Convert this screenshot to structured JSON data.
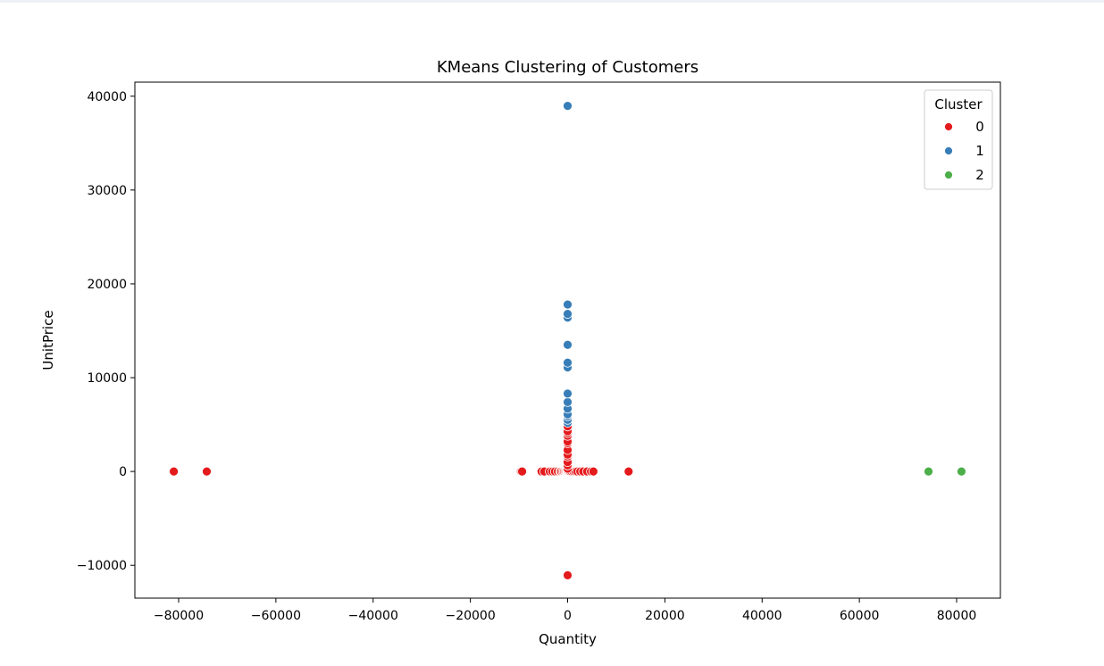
{
  "chart_data": {
    "type": "scatter",
    "title": "KMeans Clustering of Customers",
    "xlabel": "Quantity",
    "ylabel": "UnitPrice",
    "xlim": [
      -89000,
      89000
    ],
    "ylim": [
      -13500,
      41500
    ],
    "xticks": [
      -80000,
      -60000,
      -40000,
      -20000,
      0,
      20000,
      40000,
      60000,
      80000
    ],
    "yticks": [
      -10000,
      0,
      10000,
      20000,
      30000,
      40000
    ],
    "grid": false,
    "legend": {
      "title": "Cluster",
      "placement": "top-right"
    },
    "series": [
      {
        "name": "0",
        "color": "#e41a1c",
        "points": [
          [
            -80995,
            0
          ],
          [
            -74215,
            0
          ],
          [
            -9600,
            0
          ],
          [
            -9360,
            0
          ],
          [
            -5368,
            0
          ],
          [
            -4800,
            0
          ],
          [
            -3667,
            0
          ],
          [
            -3114,
            0
          ],
          [
            -2600,
            0
          ],
          [
            -2000,
            0
          ],
          [
            -1515,
            0
          ],
          [
            -1350,
            0
          ],
          [
            -1000,
            0
          ],
          [
            -750,
            0
          ],
          [
            -500,
            0
          ],
          [
            -300,
            0
          ],
          [
            -100,
            0
          ],
          [
            0,
            0
          ],
          [
            100,
            0
          ],
          [
            300,
            0
          ],
          [
            500,
            0
          ],
          [
            800,
            0
          ],
          [
            1200,
            0
          ],
          [
            1600,
            0
          ],
          [
            2000,
            0
          ],
          [
            2600,
            0
          ],
          [
            3200,
            0
          ],
          [
            4000,
            0
          ],
          [
            4800,
            0
          ],
          [
            5300,
            0
          ],
          [
            12540,
            0
          ],
          [
            0,
            300
          ],
          [
            0,
            650
          ],
          [
            0,
            1000
          ],
          [
            0,
            1600
          ],
          [
            0,
            1800
          ],
          [
            0,
            2300
          ],
          [
            0,
            3000
          ],
          [
            0,
            3200
          ],
          [
            0,
            3800
          ],
          [
            0,
            4100
          ],
          [
            0,
            4300
          ],
          [
            0,
            4800
          ],
          [
            0,
            -11062
          ]
        ]
      },
      {
        "name": "1",
        "color": "#377eb8",
        "points": [
          [
            0,
            5200
          ],
          [
            0,
            5500
          ],
          [
            0,
            5900
          ],
          [
            0,
            6100
          ],
          [
            0,
            6700
          ],
          [
            0,
            7400
          ],
          [
            0,
            8300
          ],
          [
            0,
            11100
          ],
          [
            0,
            11600
          ],
          [
            0,
            13500
          ],
          [
            0,
            16400
          ],
          [
            0,
            16800
          ],
          [
            0,
            17800
          ],
          [
            0,
            38970
          ]
        ]
      },
      {
        "name": "2",
        "color": "#4daf4a",
        "points": [
          [
            74215,
            0
          ],
          [
            80995,
            0
          ]
        ]
      }
    ]
  }
}
